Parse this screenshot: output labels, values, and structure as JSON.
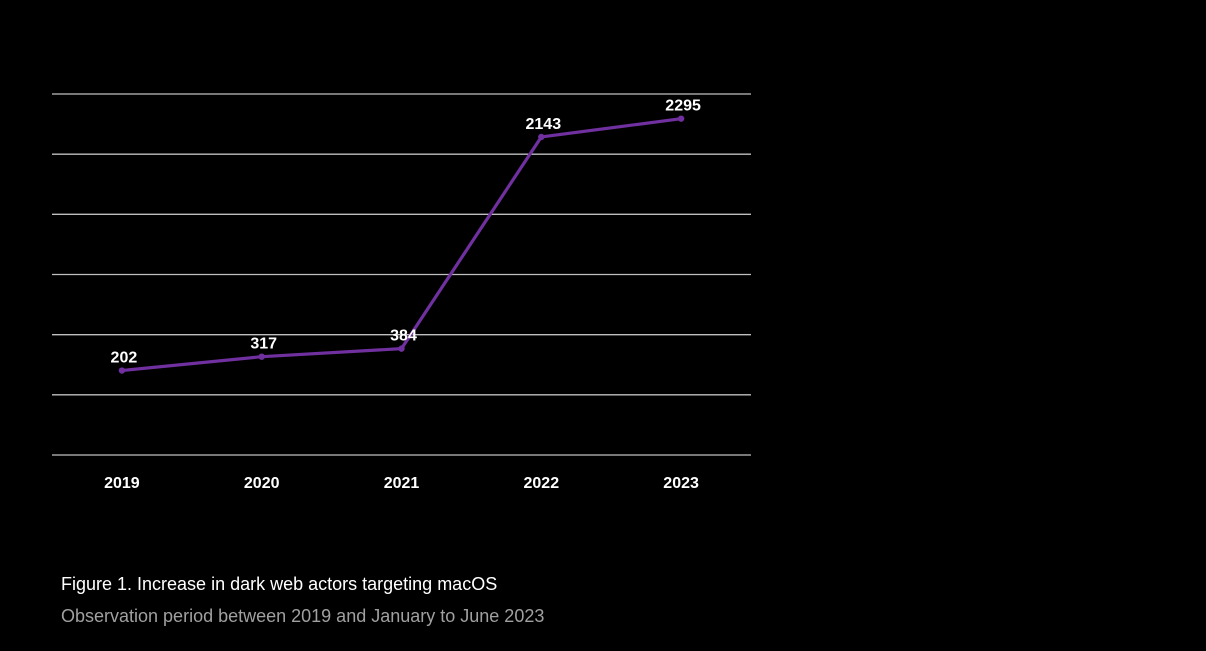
{
  "chart_data": {
    "type": "line",
    "title": "",
    "xlabel": "",
    "ylabel": "",
    "categories": [
      "2019",
      "2020",
      "2021",
      "2022",
      "2023"
    ],
    "series": [
      {
        "values": [
          202,
          317,
          384,
          2143,
          2295
        ]
      }
    ],
    "data_labels": [
      "202",
      "317",
      "384",
      "2143",
      "2295"
    ],
    "ylim": [
      -500,
      2500
    ],
    "grid": true,
    "legend": "none",
    "colors": {
      "line": "#7030a0",
      "grid": "#bfbfbf",
      "background": "#000000",
      "text": "#ffffff"
    }
  },
  "caption": {
    "title": "Figure 1. Increase in dark web actors targeting macOS",
    "subtitle": "Observation period between 2019 and January to June 2023"
  }
}
